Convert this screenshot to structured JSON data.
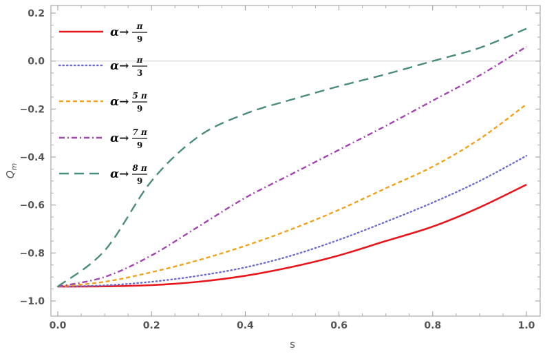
{
  "chart_data": {
    "type": "line",
    "xlabel": "s",
    "ylabel": "Q",
    "ylabel_sub": "m",
    "xlim": [
      0,
      1
    ],
    "ylim": [
      -1,
      0.2
    ],
    "x_ticks": [
      0.0,
      0.2,
      0.4,
      0.6,
      0.8,
      1.0
    ],
    "x_tick_labels": [
      "0.0",
      "0.2",
      "0.4",
      "0.6",
      "0.8",
      "1.0"
    ],
    "y_ticks": [
      -1.0,
      -0.8,
      -0.6,
      -0.4,
      -0.2,
      0.0,
      0.2
    ],
    "y_tick_labels": [
      "-1.0",
      "-0.8",
      "-0.6",
      "-0.4",
      "-0.2",
      "0.0",
      "0.2"
    ],
    "grid": false,
    "legend_position": "top-left",
    "x": [
      0.0,
      0.1,
      0.2,
      0.3,
      0.4,
      0.5,
      0.6,
      0.7,
      0.8,
      0.9,
      1.0
    ],
    "series": [
      {
        "legend_prefix": "α→",
        "numerator": "π",
        "denominator": "9",
        "color": "#e8161b",
        "style": "solid",
        "values": [
          -0.94,
          -0.939,
          -0.934,
          -0.92,
          -0.895,
          -0.858,
          -0.81,
          -0.75,
          -0.69,
          -0.61,
          -0.515
        ]
      },
      {
        "legend_prefix": "α→",
        "numerator": "π",
        "denominator": "3",
        "color": "#6d6dcf",
        "style": "dotted",
        "values": [
          -0.94,
          -0.935,
          -0.92,
          -0.895,
          -0.86,
          -0.81,
          -0.745,
          -0.67,
          -0.59,
          -0.5,
          -0.395
        ]
      },
      {
        "legend_prefix": "α→",
        "numerator": "5 π",
        "denominator": "9",
        "color": "#f0a21a",
        "style": "dashed",
        "values": [
          -0.94,
          -0.92,
          -0.88,
          -0.83,
          -0.77,
          -0.7,
          -0.62,
          -0.53,
          -0.44,
          -0.325,
          -0.18
        ]
      },
      {
        "legend_prefix": "α→",
        "numerator": "7 π",
        "denominator": "9",
        "color": "#a245b0",
        "style": "dashdot",
        "values": [
          -0.94,
          -0.9,
          -0.81,
          -0.69,
          -0.57,
          -0.47,
          -0.37,
          -0.27,
          -0.165,
          -0.06,
          0.06
        ]
      },
      {
        "legend_prefix": "α→",
        "numerator": "8 π",
        "denominator": "9",
        "color": "#4a8c7c",
        "style": "longdash",
        "values": [
          -0.94,
          -0.79,
          -0.5,
          -0.315,
          -0.22,
          -0.16,
          -0.105,
          -0.055,
          0.0,
          0.055,
          0.135
        ]
      }
    ]
  }
}
